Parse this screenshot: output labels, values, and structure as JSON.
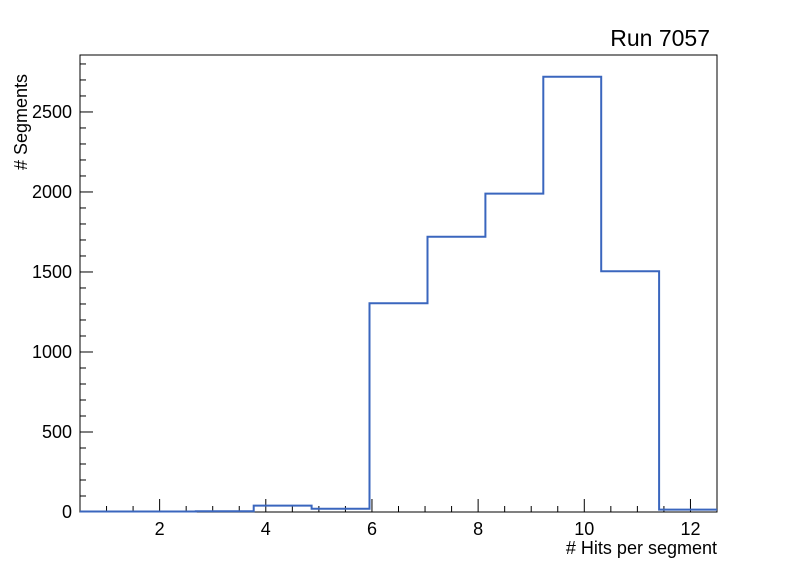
{
  "window": {
    "background": "#ffffff"
  },
  "chart_data": {
    "type": "bar",
    "style": "step-histogram",
    "title": "Run 7057",
    "xlabel": "# Hits per segment",
    "ylabel": "# Segments",
    "xlim": [
      0.5,
      12.5
    ],
    "ylim": [
      0,
      2856
    ],
    "bin_edges": [
      0.5,
      1.5909,
      2.6818,
      3.7727,
      4.8636,
      5.9545,
      7.0455,
      8.1364,
      9.2273,
      10.3182,
      11.4091,
      12.5
    ],
    "counts": [
      3,
      3,
      5,
      40,
      20,
      1305,
      1720,
      1990,
      2720,
      1505,
      15
    ],
    "x_major_ticks": [
      2,
      4,
      6,
      8,
      10,
      12
    ],
    "x_minor_step": 0.5,
    "y_major_ticks": [
      0,
      500,
      1000,
      1500,
      2000,
      2500
    ],
    "y_minor_step": 100,
    "grid": "off",
    "legend": "none",
    "line_color": "#3a66be",
    "axis_color": "#000000",
    "text_color": "#000000"
  }
}
